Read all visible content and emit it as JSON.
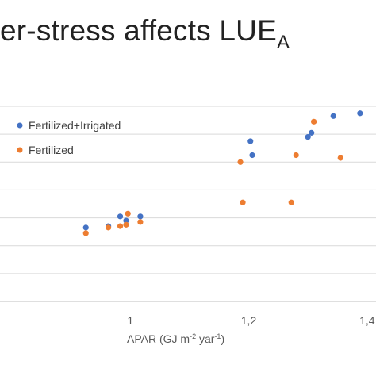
{
  "slide": {
    "title_main": "er-stress affects LUE",
    "title_sub": "A"
  },
  "chart_data": {
    "type": "scatter",
    "title": "",
    "xlabel_prefix": "APAR  (GJ m",
    "xlabel_sup1": "-2",
    "xlabel_mid": " yar",
    "xlabel_sup2": "-1",
    "xlabel_suffix": ")",
    "x_ticks": [
      {
        "value": 1.0,
        "label": "1"
      },
      {
        "value": 1.2,
        "label": "1,2"
      },
      {
        "value": 1.4,
        "label": "1,4"
      }
    ],
    "xlim": [
      0.78,
      1.415
    ],
    "ylim": [
      0,
      7
    ],
    "y_gridlines": [
      1,
      2,
      3,
      4,
      5,
      6,
      7
    ],
    "grid": true,
    "legend_position": "top-left",
    "series": [
      {
        "name": "Fertilized+Irrigated",
        "color": "#4472C4",
        "points": [
          {
            "x": 0.925,
            "y": 2.65
          },
          {
            "x": 0.963,
            "y": 2.7
          },
          {
            "x": 0.983,
            "y": 3.05
          },
          {
            "x": 0.993,
            "y": 2.9
          },
          {
            "x": 1.017,
            "y": 3.05
          },
          {
            "x": 1.203,
            "y": 5.75
          },
          {
            "x": 1.206,
            "y": 5.25
          },
          {
            "x": 1.3,
            "y": 5.9
          },
          {
            "x": 1.306,
            "y": 6.05
          },
          {
            "x": 1.343,
            "y": 6.65
          },
          {
            "x": 1.388,
            "y": 6.75
          }
        ]
      },
      {
        "name": "Fertilized",
        "color": "#ED7D31",
        "points": [
          {
            "x": 0.925,
            "y": 2.45
          },
          {
            "x": 0.963,
            "y": 2.65
          },
          {
            "x": 0.983,
            "y": 2.7
          },
          {
            "x": 0.993,
            "y": 2.75
          },
          {
            "x": 0.996,
            "y": 3.15
          },
          {
            "x": 1.017,
            "y": 2.85
          },
          {
            "x": 1.186,
            "y": 5.0
          },
          {
            "x": 1.19,
            "y": 3.55
          },
          {
            "x": 1.272,
            "y": 3.55
          },
          {
            "x": 1.28,
            "y": 5.25
          },
          {
            "x": 1.31,
            "y": 6.45
          },
          {
            "x": 1.355,
            "y": 5.15
          }
        ]
      }
    ]
  }
}
